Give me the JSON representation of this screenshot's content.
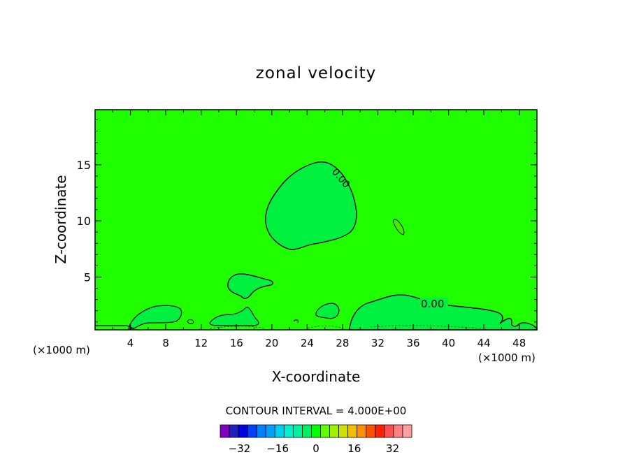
{
  "chart_data": {
    "type": "contour",
    "title": "zonal velocity",
    "xlabel": "X-coordinate",
    "ylabel": "Z-coordinate",
    "x_unit": "(×1000 m)",
    "x_unit_right": "(×1000 m)",
    "xlim": [
      0,
      50
    ],
    "ylim": [
      0.3,
      19.9
    ],
    "x_ticks": [
      4,
      8,
      12,
      16,
      20,
      24,
      28,
      32,
      36,
      40,
      44,
      48
    ],
    "y_ticks": [
      5,
      10,
      15
    ],
    "contour_labels": [
      {
        "text": "0.00",
        "x": 28.0,
        "y": 13.8
      },
      {
        "text": "0.00",
        "x": 38.5,
        "y": 2.4
      }
    ],
    "contour_interval_text": "CONTOUR INTERVAL = 4.000E+00",
    "colorbar": {
      "colors": [
        "#8000c0",
        "#2020c0",
        "#0000e0",
        "#0040ff",
        "#0080ff",
        "#00a0ff",
        "#00d0f0",
        "#00f0d0",
        "#00f0a0",
        "#00f060",
        "#00ff00",
        "#60ff00",
        "#a0f000",
        "#d0e000",
        "#f0c000",
        "#ff9000",
        "#ff5000",
        "#ff2000",
        "#ff5050",
        "#ff8080",
        "#ffa0a0"
      ],
      "tick_labels": [
        "−32",
        "−16",
        "0",
        "16",
        "32"
      ],
      "tick_values": [
        -32,
        -16,
        0,
        16,
        32
      ],
      "range": [
        -40,
        40
      ],
      "background_value": 2
    }
  }
}
